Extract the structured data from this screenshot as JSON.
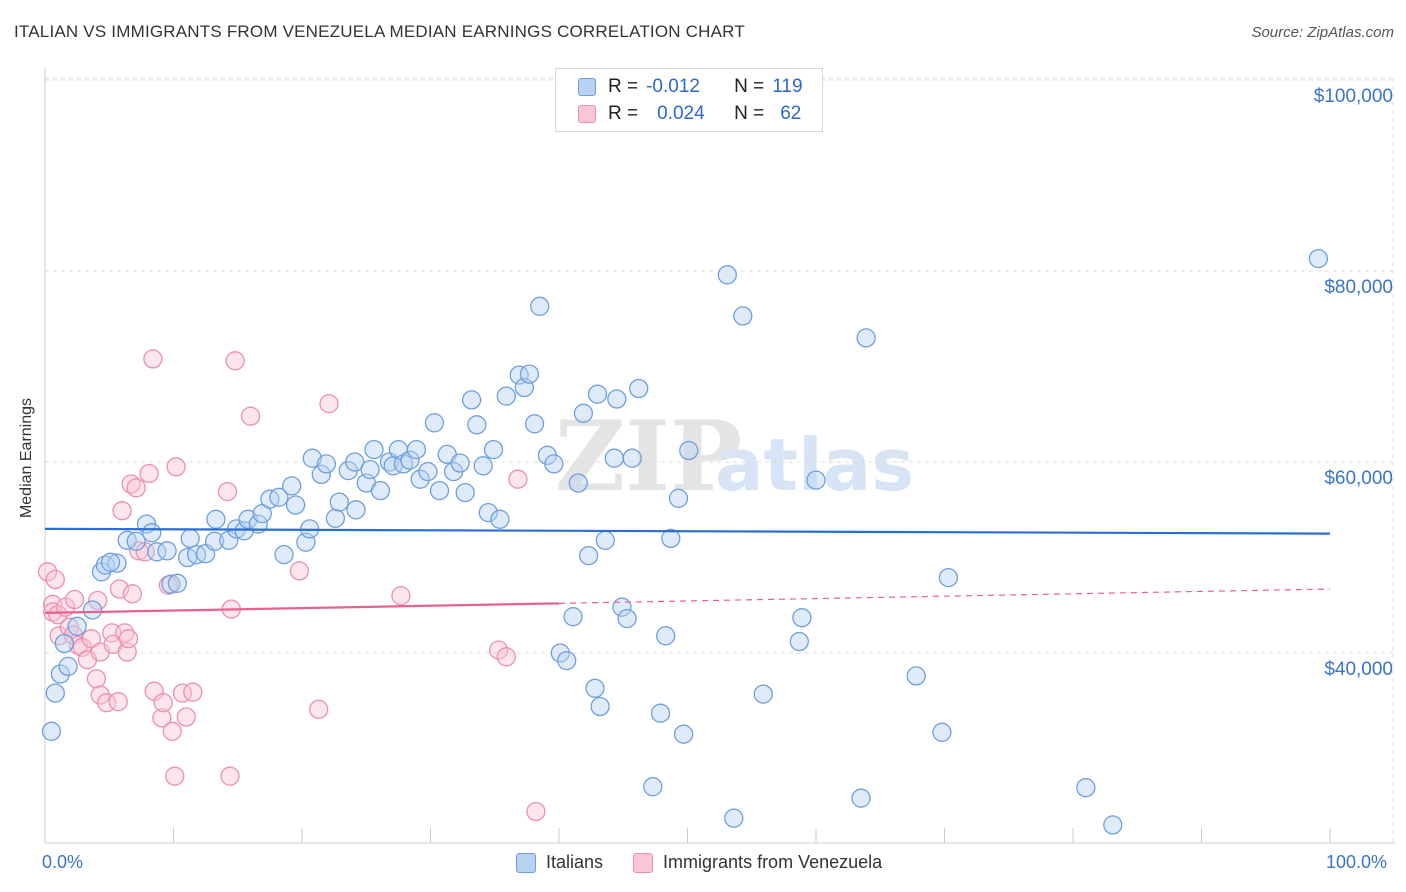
{
  "title": "ITALIAN VS IMMIGRANTS FROM VENEZUELA MEDIAN EARNINGS CORRELATION CHART",
  "source": "Source: ZipAtlas.com",
  "watermark": {
    "zip": "ZIP",
    "atlas": "atlas"
  },
  "legend": {
    "rows": [
      {
        "r_label": "R =",
        "r_value": "-0.012",
        "n_label": "N =",
        "n_value": "119"
      },
      {
        "r_label": "R =",
        "r_value": "0.024",
        "n_label": "N =",
        "n_value": "62"
      }
    ]
  },
  "bottom_legend": [
    "Italians",
    "Immigrants from Venezuela"
  ],
  "colors": {
    "italians": "#6e9fdc",
    "italians_fill": "#b9d2f2",
    "italians_line": "#2c6fcf",
    "venezuela": "#ec8fb0",
    "venezuela_fill": "#f8c6d6",
    "venezuela_line": "#e8628f",
    "tick_text": "#3a74c9",
    "grid": "#dddddd"
  },
  "chart_data": {
    "type": "scatter",
    "title": "ITALIAN VS IMMIGRANTS FROM VENEZUELA MEDIAN EARNINGS CORRELATION CHART",
    "xlabel": "",
    "ylabel": "Median Earnings",
    "xlim": [
      0,
      100
    ],
    "ylim": [
      20000,
      102000
    ],
    "x_tick_labels": [
      "0.0%",
      "100.0%"
    ],
    "y_ticks": [
      40000,
      60000,
      80000,
      100000
    ],
    "y_tick_labels": [
      "$40,000",
      "$60,000",
      "$80,000",
      "$100,000"
    ],
    "grid": true,
    "legend_position": "top-center",
    "series": [
      {
        "name": "Italians",
        "r": -0.012,
        "n": 119,
        "trend": {
          "x": [
            0,
            100
          ],
          "y": [
            53000,
            52500
          ],
          "dashed_from": null
        },
        "points": [
          [
            0.5,
            31800
          ],
          [
            0.8,
            35800
          ],
          [
            1.2,
            37800
          ],
          [
            1.8,
            38600
          ],
          [
            1.5,
            41000
          ],
          [
            2.5,
            42800
          ],
          [
            3.7,
            44500
          ],
          [
            4.4,
            48500
          ],
          [
            4.7,
            49200
          ],
          [
            5.6,
            49400
          ],
          [
            5.1,
            49500
          ],
          [
            6.4,
            51800
          ],
          [
            7.1,
            51700
          ],
          [
            7.9,
            53500
          ],
          [
            8.3,
            52600
          ],
          [
            8.7,
            50600
          ],
          [
            9.5,
            50700
          ],
          [
            9.8,
            47200
          ],
          [
            10.3,
            47300
          ],
          [
            11.1,
            50000
          ],
          [
            11.3,
            52000
          ],
          [
            11.8,
            50300
          ],
          [
            12.5,
            50400
          ],
          [
            13.2,
            51700
          ],
          [
            13.3,
            54000
          ],
          [
            14.3,
            51800
          ],
          [
            14.9,
            53000
          ],
          [
            15.5,
            52800
          ],
          [
            15.8,
            54000
          ],
          [
            16.6,
            53500
          ],
          [
            16.9,
            54600
          ],
          [
            17.5,
            56100
          ],
          [
            18.2,
            56300
          ],
          [
            18.6,
            50300
          ],
          [
            19.2,
            57500
          ],
          [
            19.5,
            55500
          ],
          [
            20.3,
            51600
          ],
          [
            20.6,
            53000
          ],
          [
            20.8,
            60400
          ],
          [
            21.5,
            58700
          ],
          [
            21.9,
            59800
          ],
          [
            22.6,
            54100
          ],
          [
            22.9,
            55800
          ],
          [
            23.6,
            59100
          ],
          [
            24.1,
            60000
          ],
          [
            24.2,
            55000
          ],
          [
            25.0,
            57800
          ],
          [
            25.3,
            59200
          ],
          [
            25.6,
            61300
          ],
          [
            26.1,
            57000
          ],
          [
            26.8,
            60000
          ],
          [
            27.1,
            59600
          ],
          [
            27.5,
            61300
          ],
          [
            27.9,
            59800
          ],
          [
            28.4,
            60200
          ],
          [
            28.9,
            61300
          ],
          [
            29.2,
            58200
          ],
          [
            29.8,
            59000
          ],
          [
            30.3,
            64100
          ],
          [
            30.7,
            57000
          ],
          [
            31.3,
            60800
          ],
          [
            31.8,
            59000
          ],
          [
            32.3,
            59900
          ],
          [
            32.7,
            56800
          ],
          [
            33.2,
            66500
          ],
          [
            33.6,
            63900
          ],
          [
            34.1,
            59600
          ],
          [
            34.5,
            54700
          ],
          [
            34.9,
            61300
          ],
          [
            35.4,
            54000
          ],
          [
            35.9,
            66900
          ],
          [
            36.9,
            69100
          ],
          [
            37.3,
            67800
          ],
          [
            37.7,
            69200
          ],
          [
            38.1,
            64000
          ],
          [
            38.5,
            76300
          ],
          [
            39.1,
            60700
          ],
          [
            39.6,
            59800
          ],
          [
            40.1,
            40000
          ],
          [
            40.6,
            39200
          ],
          [
            41.1,
            43800
          ],
          [
            41.5,
            57800
          ],
          [
            41.9,
            65100
          ],
          [
            42.3,
            50200
          ],
          [
            42.8,
            36300
          ],
          [
            43.0,
            67100
          ],
          [
            43.2,
            34400
          ],
          [
            43.6,
            51800
          ],
          [
            44.3,
            60400
          ],
          [
            44.5,
            66600
          ],
          [
            44.9,
            44800
          ],
          [
            45.3,
            43600
          ],
          [
            45.7,
            60400
          ],
          [
            46.2,
            67700
          ],
          [
            47.3,
            26000
          ],
          [
            47.9,
            33700
          ],
          [
            48.3,
            41800
          ],
          [
            48.7,
            52000
          ],
          [
            49.3,
            56200
          ],
          [
            49.7,
            31500
          ],
          [
            50.1,
            61200
          ],
          [
            53.1,
            79600
          ],
          [
            53.6,
            22700
          ],
          [
            54.3,
            75300
          ],
          [
            55.9,
            35700
          ],
          [
            58.7,
            41200
          ],
          [
            58.9,
            43700
          ],
          [
            60.0,
            58100
          ],
          [
            63.5,
            24800
          ],
          [
            63.9,
            73000
          ],
          [
            67.8,
            37600
          ],
          [
            69.8,
            31700
          ],
          [
            70.3,
            47900
          ],
          [
            81.0,
            25900
          ],
          [
            83.1,
            22000
          ],
          [
            99.1,
            81300
          ]
        ]
      },
      {
        "name": "Immigrants from Venezuela",
        "r": 0.024,
        "n": 62,
        "trend": {
          "x": [
            0,
            100
          ],
          "y": [
            44200,
            46700
          ],
          "dashed_from": 40
        },
        "points": [
          [
            0.2,
            48500
          ],
          [
            0.6,
            45100
          ],
          [
            0.6,
            44300
          ],
          [
            0.8,
            47700
          ],
          [
            1.0,
            44000
          ],
          [
            1.1,
            41800
          ],
          [
            1.6,
            44800
          ],
          [
            1.9,
            42700
          ],
          [
            2.2,
            41900
          ],
          [
            2.3,
            45600
          ],
          [
            2.6,
            40800
          ],
          [
            2.9,
            40600
          ],
          [
            3.3,
            39300
          ],
          [
            3.6,
            41500
          ],
          [
            4.0,
            37300
          ],
          [
            4.1,
            45500
          ],
          [
            4.3,
            40100
          ],
          [
            4.3,
            35600
          ],
          [
            4.8,
            34800
          ],
          [
            5.2,
            42100
          ],
          [
            5.3,
            40900
          ],
          [
            5.7,
            34900
          ],
          [
            5.8,
            46700
          ],
          [
            6.0,
            54900
          ],
          [
            6.2,
            42100
          ],
          [
            6.4,
            40100
          ],
          [
            6.5,
            41500
          ],
          [
            6.7,
            57700
          ],
          [
            6.8,
            46200
          ],
          [
            7.1,
            57300
          ],
          [
            7.3,
            50700
          ],
          [
            7.8,
            50600
          ],
          [
            8.1,
            58800
          ],
          [
            8.4,
            70800
          ],
          [
            8.5,
            36000
          ],
          [
            9.1,
            33200
          ],
          [
            9.2,
            34800
          ],
          [
            9.6,
            47100
          ],
          [
            9.9,
            31800
          ],
          [
            10.1,
            27100
          ],
          [
            10.2,
            59500
          ],
          [
            10.7,
            35800
          ],
          [
            11.0,
            33300
          ],
          [
            11.5,
            35900
          ],
          [
            14.2,
            56900
          ],
          [
            14.4,
            27100
          ],
          [
            14.5,
            44600
          ],
          [
            14.8,
            70600
          ],
          [
            16.0,
            64800
          ],
          [
            19.8,
            48600
          ],
          [
            21.3,
            34100
          ],
          [
            22.1,
            66100
          ],
          [
            27.7,
            46000
          ],
          [
            35.3,
            40300
          ],
          [
            35.9,
            39600
          ],
          [
            36.8,
            58200
          ],
          [
            38.2,
            23400
          ]
        ]
      }
    ]
  }
}
